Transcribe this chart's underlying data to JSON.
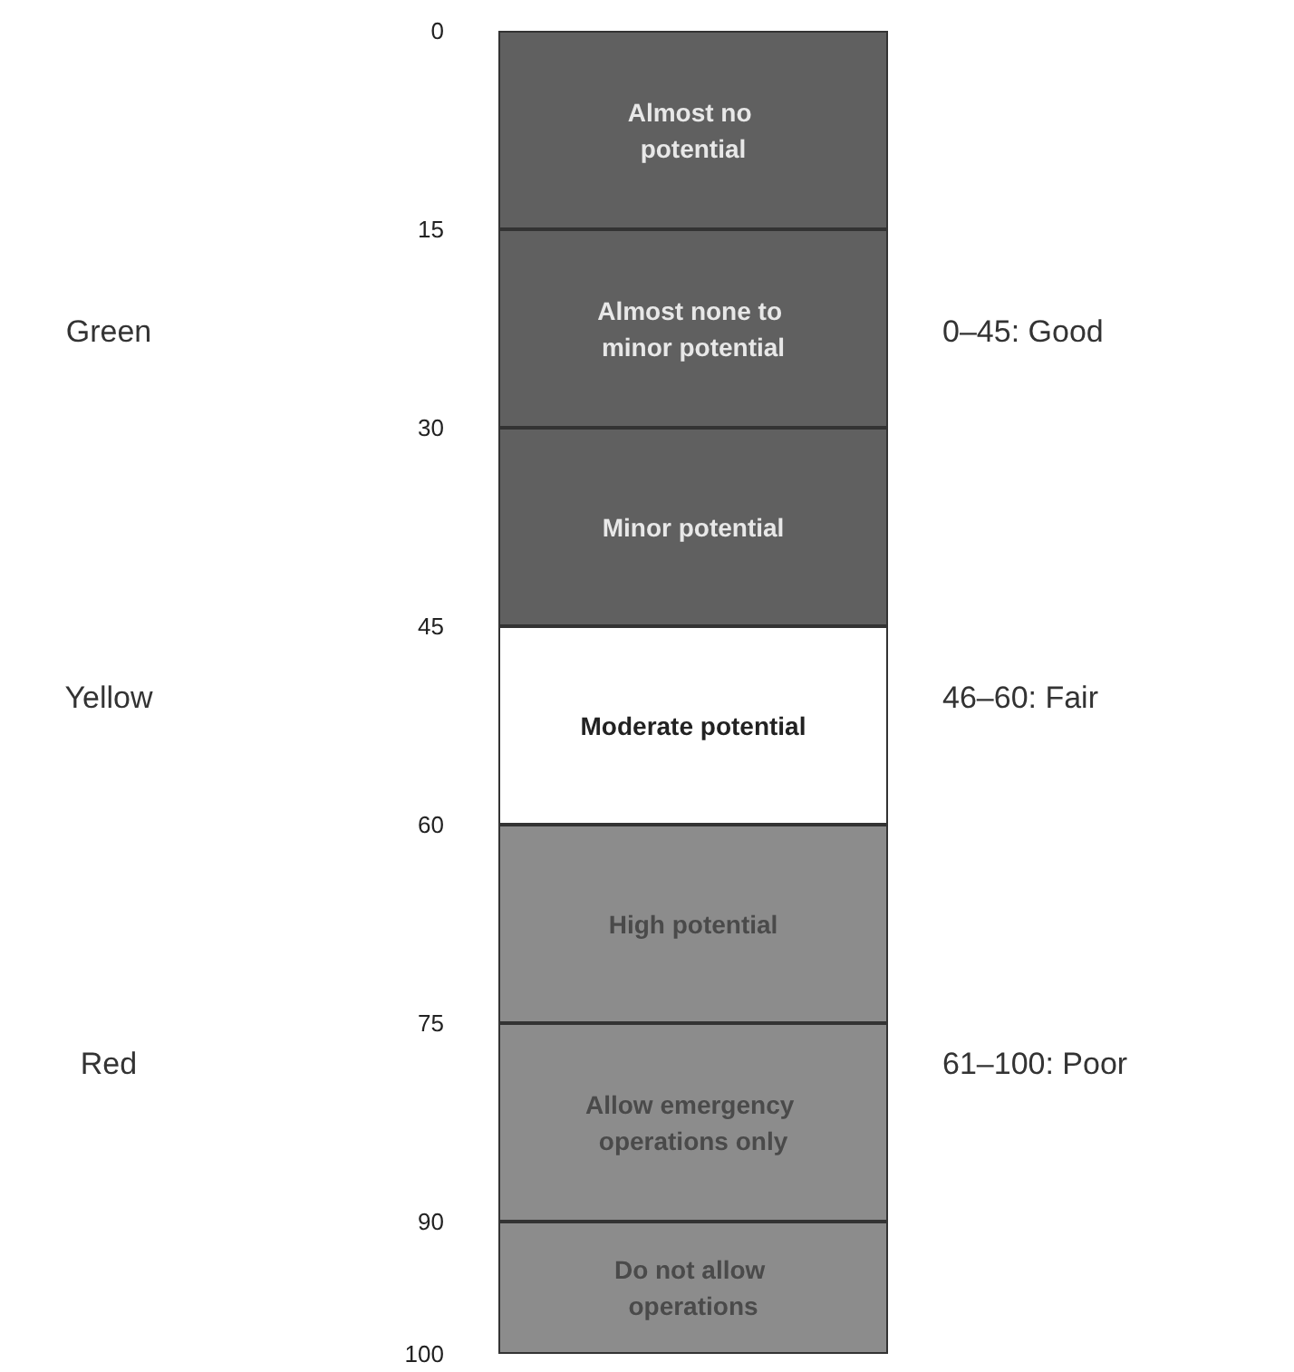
{
  "chart_data": {
    "type": "bar",
    "stacked": true,
    "categories": [
      null
    ],
    "series": [
      {
        "name": "Almost no potential",
        "color": "#606060",
        "values": [
          15
        ]
      },
      {
        "name": "Almost none to minor potential",
        "color": "#606060",
        "values": [
          15
        ]
      },
      {
        "name": "Minor potential",
        "color": "#606060",
        "values": [
          15
        ]
      },
      {
        "name": "Moderate potential",
        "color": "#ffffff",
        "values": [
          15
        ]
      },
      {
        "name": "High potential",
        "color": "#8c8c8c",
        "values": [
          15
        ]
      },
      {
        "name": "Allow emergency operations only",
        "color": "#8c8c8c",
        "values": [
          15
        ]
      },
      {
        "name": "Do not allow operations",
        "color": "#8c8c8c",
        "values": [
          10
        ]
      }
    ],
    "ylim": [
      100,
      0
    ],
    "yticks": [
      0,
      15,
      30,
      45,
      60,
      75,
      90,
      100
    ],
    "tick_labels": "y",
    "grid": false,
    "legend": false,
    "annotations": [
      "Green",
      "0–45: Good",
      "Yellow",
      "46–60: Fair",
      "Red",
      "61–100: Poor"
    ]
  }
}
